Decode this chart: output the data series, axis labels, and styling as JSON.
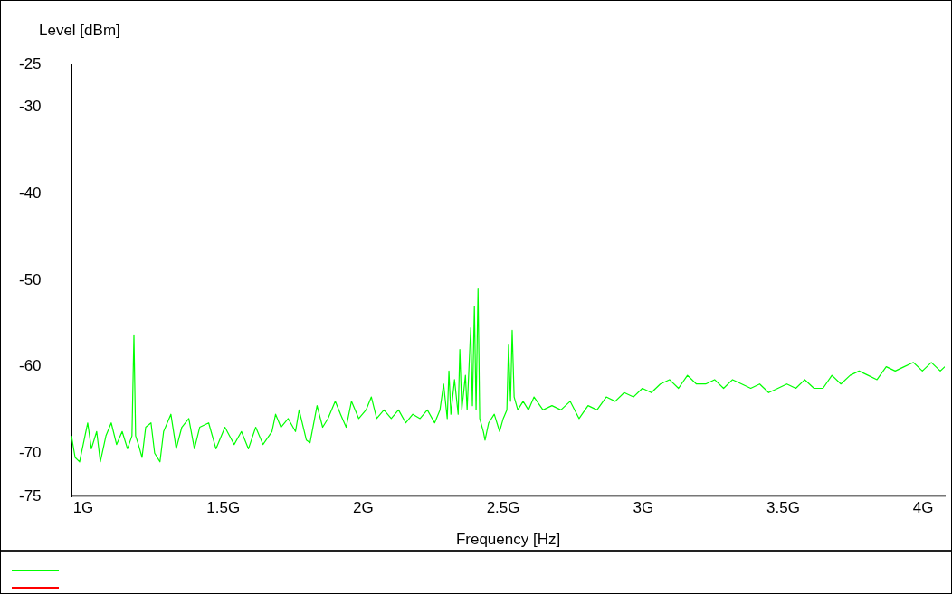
{
  "chart_data": {
    "type": "line",
    "xlabel": "Frequency [Hz]",
    "ylabel": "Level [dBm]",
    "xlim": [
      0.958,
      4.077
    ],
    "xticks": [
      {
        "value": 1,
        "label": "1G"
      },
      {
        "value": 1.5,
        "label": "1.5G"
      },
      {
        "value": 2,
        "label": "2G"
      },
      {
        "value": 2.5,
        "label": "2.5G"
      },
      {
        "value": 3,
        "label": "3G"
      },
      {
        "value": 3.5,
        "label": "3.5G"
      },
      {
        "value": 4,
        "label": "4G"
      }
    ],
    "ylim": [
      -75,
      -25
    ],
    "yticks": [
      -25,
      -30,
      -40,
      -50,
      -60,
      -70,
      -75
    ],
    "grid": false,
    "marker": "none",
    "line_style": "solid",
    "series": [
      {
        "color": "#00ff00",
        "x": [
          0.958,
          0.971,
          0.987,
          1.003,
          1.016,
          1.029,
          1.048,
          1.061,
          1.081,
          1.1,
          1.119,
          1.139,
          1.158,
          1.174,
          1.181,
          1.187,
          1.197,
          1.21,
          1.223,
          1.242,
          1.255,
          1.274,
          1.287,
          1.313,
          1.332,
          1.352,
          1.377,
          1.397,
          1.416,
          1.448,
          1.474,
          1.506,
          1.539,
          1.565,
          1.59,
          1.616,
          1.642,
          1.674,
          1.687,
          1.706,
          1.732,
          1.758,
          1.771,
          1.797,
          1.81,
          1.835,
          1.855,
          1.874,
          1.9,
          1.919,
          1.939,
          1.958,
          1.984,
          2.01,
          2.029,
          2.048,
          2.074,
          2.1,
          2.126,
          2.152,
          2.177,
          2.203,
          2.229,
          2.255,
          2.274,
          2.287,
          2.3,
          2.306,
          2.313,
          2.326,
          2.339,
          2.345,
          2.352,
          2.365,
          2.371,
          2.384,
          2.39,
          2.397,
          2.403,
          2.41,
          2.416,
          2.429,
          2.435,
          2.448,
          2.468,
          2.487,
          2.5,
          2.513,
          2.519,
          2.526,
          2.532,
          2.539,
          2.552,
          2.571,
          2.59,
          2.61,
          2.642,
          2.674,
          2.706,
          2.739,
          2.771,
          2.803,
          2.835,
          2.868,
          2.9,
          2.932,
          2.965,
          2.997,
          3.029,
          3.061,
          3.094,
          3.126,
          3.158,
          3.19,
          3.223,
          3.255,
          3.287,
          3.319,
          3.352,
          3.384,
          3.416,
          3.448,
          3.481,
          3.513,
          3.545,
          3.577,
          3.61,
          3.642,
          3.674,
          3.706,
          3.739,
          3.771,
          3.803,
          3.835,
          3.868,
          3.9,
          3.932,
          3.965,
          3.997,
          4.029,
          4.061,
          4.077
        ],
        "values": [
          -68,
          -70.5,
          -71,
          -68.5,
          -66.5,
          -69.5,
          -67.5,
          -71,
          -68,
          -66.5,
          -69,
          -67.5,
          -69.5,
          -68,
          -56.3,
          -68,
          -69,
          -70.5,
          -67,
          -66.5,
          -70,
          -71,
          -67.5,
          -65.5,
          -69.5,
          -67,
          -66,
          -69.5,
          -67,
          -66.5,
          -69.5,
          -67,
          -69,
          -67.5,
          -69.5,
          -67,
          -69,
          -67.5,
          -65.5,
          -67,
          -66,
          -67.5,
          -65,
          -68.5,
          -68.8,
          -64.5,
          -67,
          -66,
          -64,
          -65.5,
          -67,
          -64,
          -66,
          -65,
          -63.5,
          -66,
          -65,
          -66,
          -65,
          -66.5,
          -65.5,
          -66,
          -65,
          -66.5,
          -65,
          -62,
          -66,
          -60.5,
          -65.5,
          -61.5,
          -65.5,
          -58,
          -65,
          -61,
          -65,
          -55.5,
          -64.5,
          -53,
          -65,
          -51,
          -66,
          -67.5,
          -68.5,
          -66.5,
          -65.5,
          -67.5,
          -66,
          -65,
          -57.5,
          -64,
          -55.8,
          -63.5,
          -65,
          -64,
          -65,
          -63.5,
          -65,
          -64.5,
          -65,
          -64,
          -66,
          -64.5,
          -65,
          -63.5,
          -64,
          -63,
          -63.5,
          -62.5,
          -63,
          -62,
          -61.5,
          -62.5,
          -61,
          -62,
          -62,
          -61.5,
          -62.5,
          -61.5,
          -62,
          -62.5,
          -62,
          -63,
          -62.5,
          -62,
          -62.5,
          -61.5,
          -62.5,
          -62.5,
          -61,
          -62,
          -61,
          -60.5,
          -61,
          -61.5,
          -60,
          -60.5,
          -60,
          -59.5,
          -60.5,
          -59.5,
          -60.5,
          -60
        ]
      }
    ]
  }
}
